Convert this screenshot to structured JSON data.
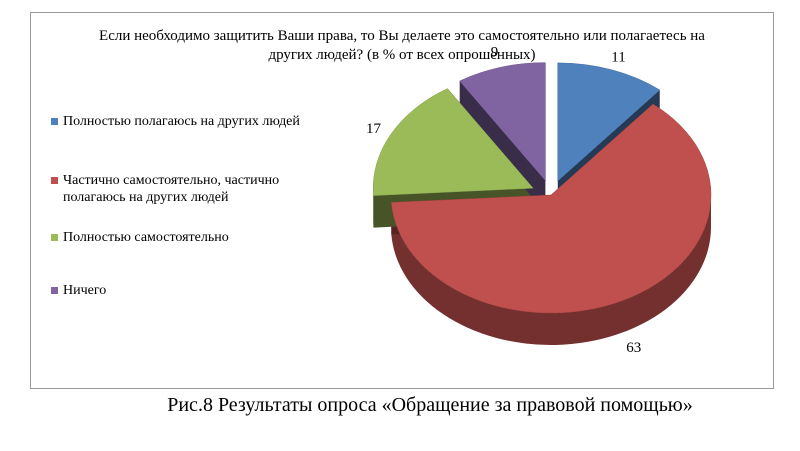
{
  "chart_data": {
    "type": "pie",
    "title": "Если необходимо защитить Ваши права, то Вы делаете это самостоятельно или полагаетесь на других людей? (в % от всех опрошенных)",
    "categories": [
      "Полностью полагаюсь на других людей",
      "Частично самостоятельно, частично полагаюсь на других людей",
      "Полностью самостоятельно",
      "Ничего"
    ],
    "values": [
      11,
      63,
      17,
      9
    ],
    "colors": [
      "#4f81bd",
      "#c0504d",
      "#9bbb59",
      "#8064a2"
    ],
    "legend_position": "left",
    "style": "3d-exploded"
  },
  "caption": "Рис.8 Результаты опроса «Обращение за правовой помощью»"
}
